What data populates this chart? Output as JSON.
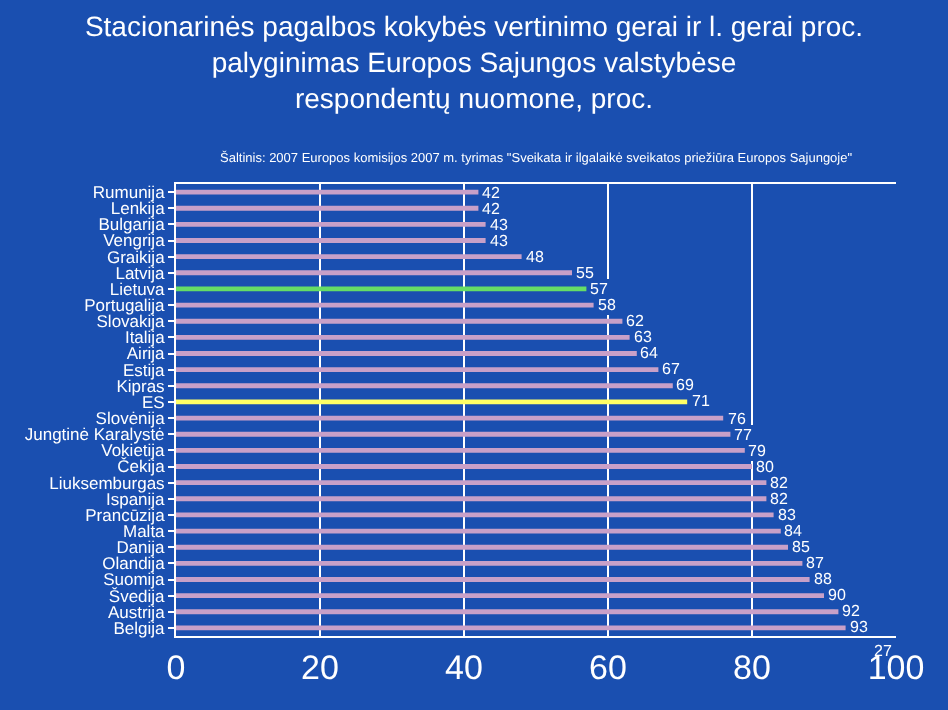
{
  "chart_data": {
    "type": "bar",
    "orientation": "horizontal",
    "title": "Stacionarinės pagalbos kokybės vertinimo gerai ir l. gerai proc.\npalyginimas Europos Sajungos valstybėse\nrespondentų nuomone, proc.",
    "subtitle": "Šaltinis: 2007 Europos komisijos 2007 m. tyrimas \"Sveikata ir ilgalaikė sveikatos priežiūra Europos Sajungoje\"",
    "categories": [
      "Rumunija",
      "Lenkija",
      "Bulgarija",
      "Vengrija",
      "Graikija",
      "Latvija",
      "Lietuva",
      "Portugalija",
      "Slovakija",
      "Italija",
      "Airija",
      "Estija",
      "Kipras",
      "ES",
      "Slovėnija",
      "Jungtinė Karalystė",
      "Vokietija",
      "Čekija",
      "Liuksemburgas",
      "Ispanija",
      "Prancūzija",
      "Malta",
      "Danija",
      "Olandija",
      "Suomija",
      "Švedija",
      "Austrija",
      "Belgija"
    ],
    "values": [
      42,
      42,
      43,
      43,
      48,
      55,
      57,
      58,
      62,
      63,
      64,
      67,
      69,
      71,
      76,
      77,
      79,
      80,
      82,
      82,
      83,
      84,
      85,
      87,
      88,
      90,
      92,
      93
    ],
    "colors": [
      "#c8a0c8",
      "#c8a0c8",
      "#c8a0c8",
      "#c8a0c8",
      "#c8a0c8",
      "#c8a0c8",
      "#66dd66",
      "#c8a0c8",
      "#c8a0c8",
      "#c8a0c8",
      "#c8a0c8",
      "#c8a0c8",
      "#c8a0c8",
      "#ffff66",
      "#c8a0c8",
      "#c8a0c8",
      "#c8a0c8",
      "#c8a0c8",
      "#c8a0c8",
      "#c8a0c8",
      "#c8a0c8",
      "#c8a0c8",
      "#c8a0c8",
      "#c8a0c8",
      "#c8a0c8",
      "#c8a0c8",
      "#c8a0c8",
      "#c8a0c8"
    ],
    "xlim": [
      0,
      100
    ],
    "xticks": [
      0,
      20,
      40,
      60,
      80,
      100
    ],
    "grid": "x",
    "data_labels": true,
    "annotations": [
      "27"
    ]
  }
}
